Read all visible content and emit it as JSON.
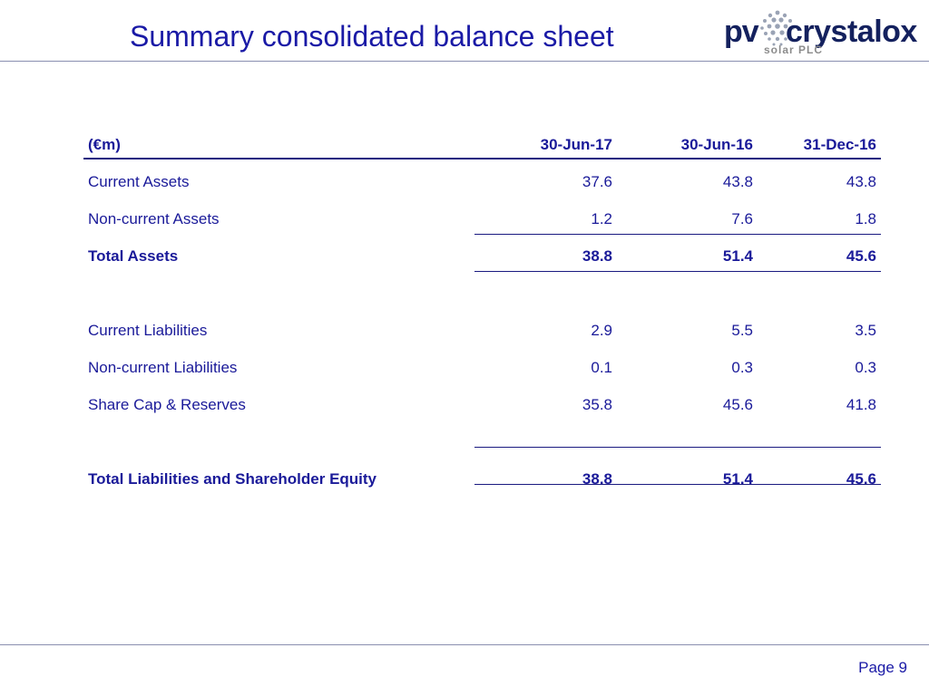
{
  "header": {
    "title": "Summary consolidated balance sheet",
    "logo": {
      "pv": "pv",
      "brand": "crystalox",
      "tagline": "solar PLC"
    }
  },
  "table": {
    "columns": [
      "(€m)",
      "30-Jun-17",
      "30-Jun-16",
      "31-Dec-16"
    ],
    "rows": {
      "current_assets": [
        "Current Assets",
        "37.6",
        "43.8",
        "43.8"
      ],
      "noncurrent_assets": [
        "Non-current Assets",
        "1.2",
        "7.6",
        "1.8"
      ],
      "total_assets": [
        "Total Assets",
        "38.8",
        "51.4",
        "45.6"
      ],
      "current_liabilities": [
        "Current Liabilities",
        "2.9",
        "5.5",
        "3.5"
      ],
      "noncurrent_liabilities": [
        "Non-current Liabilities",
        "0.1",
        "0.3",
        "0.3"
      ],
      "share_cap": [
        "Share Cap & Reserves",
        "35.8",
        "45.6",
        "41.8"
      ],
      "total_liab_equity": [
        "Total Liabilities and Shareholder Equity",
        "38.8",
        "51.4",
        "45.6"
      ]
    }
  },
  "footer": {
    "page": "Page 9"
  },
  "colors": {
    "text": "#1a1aa6",
    "logo": "#14215e",
    "rule": "#8a8fb0"
  }
}
